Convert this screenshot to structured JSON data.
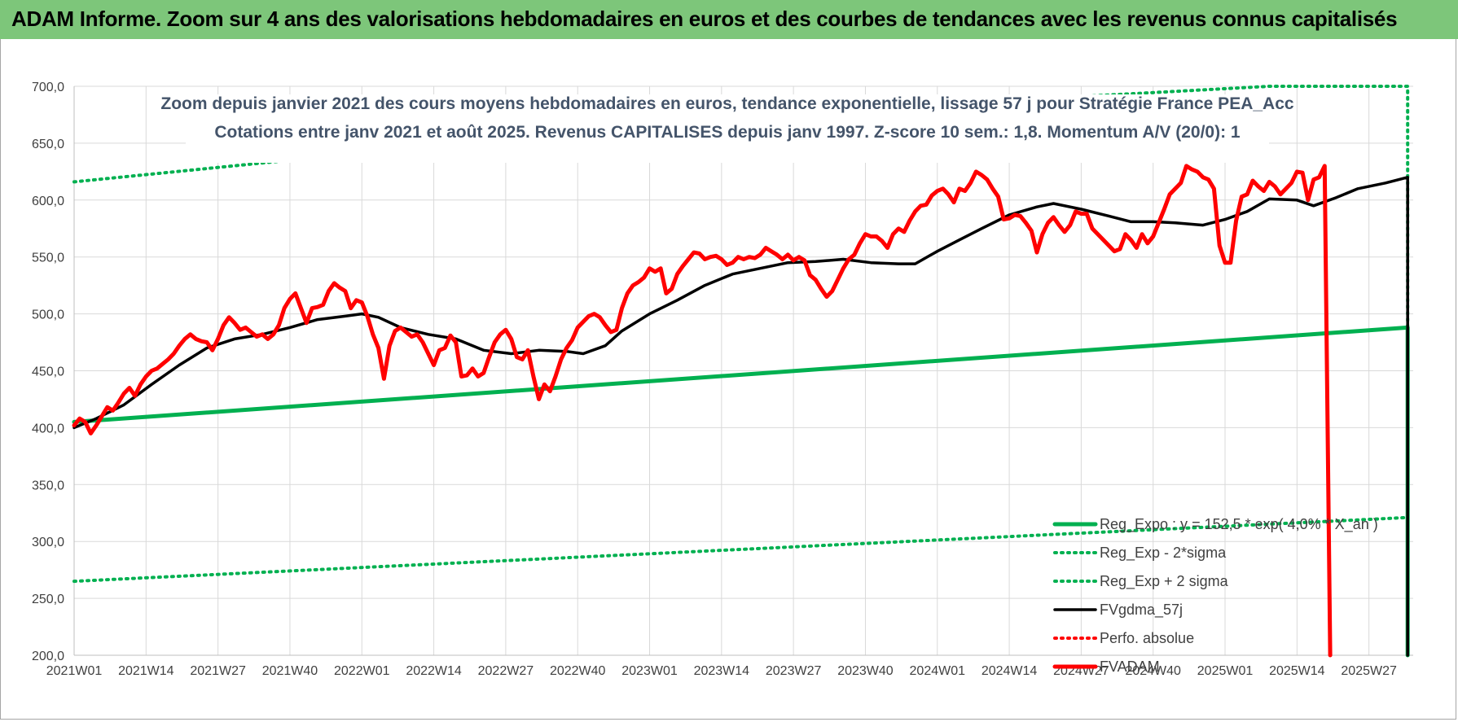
{
  "header": {
    "title": "ADAM Informe. Zoom sur 4 ans des valorisations hebdomadaires en euros et des courbes de tendances avec les revenus connus capitalisés"
  },
  "chart_data": {
    "type": "line",
    "title": "Zoom depuis janvier 2021 des cours moyens hebdomadaires en euros, tendance exponentielle, lissage 57 j pour Stratégie France PEA_Acc",
    "subtitle": "Cotations entre janv 2021 et août 2025. Revenus CAPITALISES depuis janv 1997. Z-score 10 sem.: 1,8. Momentum A/V (20/0): 1",
    "ylim": [
      200,
      700
    ],
    "yticks": [
      "700,0",
      "650,0",
      "600,0",
      "550,0",
      "500,0",
      "450,0",
      "400,0",
      "350,0",
      "300,0",
      "250,0",
      "200,0"
    ],
    "xlim": [
      1,
      243
    ],
    "xticks": [
      {
        "x": 1,
        "label": "2021W01"
      },
      {
        "x": 14,
        "label": "2021W14"
      },
      {
        "x": 27,
        "label": "2021W27"
      },
      {
        "x": 40,
        "label": "2021W40"
      },
      {
        "x": 53,
        "label": "2022W01"
      },
      {
        "x": 66,
        "label": "2022W14"
      },
      {
        "x": 79,
        "label": "2022W27"
      },
      {
        "x": 92,
        "label": "2022W40"
      },
      {
        "x": 105,
        "label": "2023W01"
      },
      {
        "x": 118,
        "label": "2023W14"
      },
      {
        "x": 131,
        "label": "2023W27"
      },
      {
        "x": 144,
        "label": "2023W40"
      },
      {
        "x": 157,
        "label": "2024W01"
      },
      {
        "x": 170,
        "label": "2024W14"
      },
      {
        "x": 183,
        "label": "2024W27"
      },
      {
        "x": 196,
        "label": "2024W40"
      },
      {
        "x": 209,
        "label": "2025W01"
      },
      {
        "x": 222,
        "label": "2025W14"
      },
      {
        "x": 235,
        "label": "2025W27"
      }
    ],
    "series": [
      {
        "name": "Reg_Expo : y = 152,5 * exp( 4,0% *  X_an )",
        "color": "#00b050",
        "style": "solid",
        "points": [
          [
            1,
            405
          ],
          [
            242,
            488
          ],
          [
            242,
            200
          ]
        ]
      },
      {
        "name": "Reg_Exp - 2*sigma",
        "color": "#00b050",
        "style": "dotted",
        "points": [
          [
            1,
            265
          ],
          [
            242,
            321
          ],
          [
            242,
            200
          ]
        ]
      },
      {
        "name": "Reg_Exp + 2 sigma",
        "color": "#00b050",
        "style": "dotted",
        "points": [
          [
            1,
            616
          ],
          [
            122,
            675
          ],
          [
            217,
            700
          ],
          [
            242,
            700
          ],
          [
            242,
            200
          ]
        ]
      },
      {
        "name": "FVgdma_57j",
        "color": "#000000",
        "style": "solid",
        "points": [
          [
            1,
            400
          ],
          [
            5,
            408
          ],
          [
            10,
            420
          ],
          [
            15,
            438
          ],
          [
            20,
            455
          ],
          [
            25,
            470
          ],
          [
            30,
            478
          ],
          [
            35,
            482
          ],
          [
            40,
            488
          ],
          [
            45,
            495
          ],
          [
            50,
            498
          ],
          [
            53,
            500
          ],
          [
            56,
            497
          ],
          [
            60,
            488
          ],
          [
            65,
            482
          ],
          [
            70,
            478
          ],
          [
            75,
            468
          ],
          [
            80,
            465
          ],
          [
            85,
            468
          ],
          [
            90,
            467
          ],
          [
            93,
            465
          ],
          [
            97,
            472
          ],
          [
            100,
            485
          ],
          [
            105,
            500
          ],
          [
            110,
            512
          ],
          [
            115,
            525
          ],
          [
            120,
            535
          ],
          [
            125,
            540
          ],
          [
            130,
            545
          ],
          [
            135,
            546
          ],
          [
            140,
            548
          ],
          [
            145,
            545
          ],
          [
            150,
            544
          ],
          [
            153,
            544
          ],
          [
            157,
            555
          ],
          [
            161,
            565
          ],
          [
            165,
            575
          ],
          [
            170,
            587
          ],
          [
            175,
            594
          ],
          [
            178,
            597
          ],
          [
            183,
            592
          ],
          [
            188,
            586
          ],
          [
            192,
            581
          ],
          [
            196,
            581
          ],
          [
            200,
            580
          ],
          [
            205,
            578
          ],
          [
            209,
            583
          ],
          [
            213,
            590
          ],
          [
            217,
            601
          ],
          [
            222,
            600
          ],
          [
            225,
            595
          ],
          [
            229,
            602
          ],
          [
            233,
            610
          ],
          [
            238,
            615
          ],
          [
            242,
            620
          ],
          [
            242,
            200
          ]
        ]
      },
      {
        "name": "Perfo. absolue",
        "color": "#ff0000",
        "style": "dotted",
        "points": []
      },
      {
        "name": "FVADAM",
        "color": "#ff0000",
        "style": "solid",
        "points": [
          [
            1,
            402
          ],
          [
            2,
            408
          ],
          [
            3,
            405
          ],
          [
            4,
            395
          ],
          [
            5,
            402
          ],
          [
            6,
            410
          ],
          [
            7,
            418
          ],
          [
            8,
            415
          ],
          [
            9,
            422
          ],
          [
            10,
            430
          ],
          [
            11,
            435
          ],
          [
            12,
            428
          ],
          [
            13,
            438
          ],
          [
            14,
            445
          ],
          [
            15,
            450
          ],
          [
            16,
            452
          ],
          [
            17,
            456
          ],
          [
            18,
            460
          ],
          [
            19,
            465
          ],
          [
            20,
            472
          ],
          [
            21,
            478
          ],
          [
            22,
            482
          ],
          [
            23,
            478
          ],
          [
            24,
            476
          ],
          [
            25,
            475
          ],
          [
            26,
            468
          ],
          [
            27,
            478
          ],
          [
            28,
            490
          ],
          [
            29,
            497
          ],
          [
            30,
            492
          ],
          [
            31,
            486
          ],
          [
            32,
            488
          ],
          [
            33,
            484
          ],
          [
            34,
            480
          ],
          [
            35,
            482
          ],
          [
            36,
            478
          ],
          [
            37,
            482
          ],
          [
            38,
            490
          ],
          [
            39,
            505
          ],
          [
            40,
            513
          ],
          [
            41,
            518
          ],
          [
            42,
            505
          ],
          [
            43,
            492
          ],
          [
            44,
            505
          ],
          [
            45,
            506
          ],
          [
            46,
            508
          ],
          [
            47,
            520
          ],
          [
            48,
            527
          ],
          [
            49,
            523
          ],
          [
            50,
            520
          ],
          [
            51,
            505
          ],
          [
            52,
            512
          ],
          [
            53,
            510
          ],
          [
            54,
            498
          ],
          [
            55,
            482
          ],
          [
            56,
            470
          ],
          [
            57,
            443
          ],
          [
            58,
            472
          ],
          [
            59,
            485
          ],
          [
            60,
            488
          ],
          [
            61,
            484
          ],
          [
            62,
            480
          ],
          [
            63,
            482
          ],
          [
            64,
            475
          ],
          [
            65,
            465
          ],
          [
            66,
            455
          ],
          [
            67,
            468
          ],
          [
            68,
            470
          ],
          [
            69,
            481
          ],
          [
            70,
            475
          ],
          [
            71,
            445
          ],
          [
            72,
            446
          ],
          [
            73,
            452
          ],
          [
            74,
            445
          ],
          [
            75,
            448
          ],
          [
            76,
            462
          ],
          [
            77,
            475
          ],
          [
            78,
            482
          ],
          [
            79,
            486
          ],
          [
            80,
            478
          ],
          [
            81,
            462
          ],
          [
            82,
            460
          ],
          [
            83,
            468
          ],
          [
            84,
            445
          ],
          [
            85,
            425
          ],
          [
            86,
            438
          ],
          [
            87,
            432
          ],
          [
            88,
            445
          ],
          [
            89,
            460
          ],
          [
            90,
            470
          ],
          [
            91,
            477
          ],
          [
            92,
            488
          ],
          [
            93,
            493
          ],
          [
            94,
            498
          ],
          [
            95,
            500
          ],
          [
            96,
            497
          ],
          [
            97,
            490
          ],
          [
            98,
            484
          ],
          [
            99,
            486
          ],
          [
            100,
            505
          ],
          [
            101,
            518
          ],
          [
            102,
            525
          ],
          [
            103,
            528
          ],
          [
            104,
            532
          ],
          [
            105,
            540
          ],
          [
            106,
            537
          ],
          [
            107,
            540
          ],
          [
            108,
            518
          ],
          [
            109,
            522
          ],
          [
            110,
            535
          ],
          [
            111,
            542
          ],
          [
            112,
            548
          ],
          [
            113,
            554
          ],
          [
            114,
            553
          ],
          [
            115,
            548
          ],
          [
            116,
            550
          ],
          [
            117,
            551
          ],
          [
            118,
            548
          ],
          [
            119,
            543
          ],
          [
            120,
            545
          ],
          [
            121,
            550
          ],
          [
            122,
            548
          ],
          [
            123,
            550
          ],
          [
            124,
            549
          ],
          [
            125,
            552
          ],
          [
            126,
            558
          ],
          [
            127,
            555
          ],
          [
            128,
            552
          ],
          [
            129,
            548
          ],
          [
            130,
            552
          ],
          [
            131,
            547
          ],
          [
            132,
            550
          ],
          [
            133,
            547
          ],
          [
            134,
            534
          ],
          [
            135,
            530
          ],
          [
            136,
            522
          ],
          [
            137,
            515
          ],
          [
            138,
            520
          ],
          [
            139,
            530
          ],
          [
            140,
            540
          ],
          [
            141,
            548
          ],
          [
            142,
            552
          ],
          [
            143,
            562
          ],
          [
            144,
            570
          ],
          [
            145,
            568
          ],
          [
            146,
            568
          ],
          [
            147,
            564
          ],
          [
            148,
            558
          ],
          [
            149,
            570
          ],
          [
            150,
            575
          ],
          [
            151,
            572
          ],
          [
            152,
            582
          ],
          [
            153,
            590
          ],
          [
            154,
            595
          ],
          [
            155,
            596
          ],
          [
            156,
            604
          ],
          [
            157,
            608
          ],
          [
            158,
            610
          ],
          [
            159,
            605
          ],
          [
            160,
            598
          ],
          [
            161,
            610
          ],
          [
            162,
            608
          ],
          [
            163,
            615
          ],
          [
            164,
            625
          ],
          [
            165,
            622
          ],
          [
            166,
            618
          ],
          [
            167,
            610
          ],
          [
            168,
            603
          ],
          [
            169,
            583
          ],
          [
            170,
            584
          ],
          [
            171,
            587
          ],
          [
            172,
            586
          ],
          [
            173,
            580
          ],
          [
            174,
            573
          ],
          [
            175,
            554
          ],
          [
            176,
            570
          ],
          [
            177,
            580
          ],
          [
            178,
            585
          ],
          [
            179,
            578
          ],
          [
            180,
            572
          ],
          [
            181,
            578
          ],
          [
            182,
            590
          ],
          [
            183,
            588
          ],
          [
            184,
            588
          ],
          [
            185,
            575
          ],
          [
            186,
            570
          ],
          [
            187,
            565
          ],
          [
            188,
            560
          ],
          [
            189,
            555
          ],
          [
            190,
            557
          ],
          [
            191,
            570
          ],
          [
            192,
            565
          ],
          [
            193,
            558
          ],
          [
            194,
            570
          ],
          [
            195,
            562
          ],
          [
            196,
            568
          ],
          [
            197,
            580
          ],
          [
            198,
            592
          ],
          [
            199,
            605
          ],
          [
            200,
            610
          ],
          [
            201,
            615
          ],
          [
            202,
            630
          ],
          [
            203,
            627
          ],
          [
            204,
            625
          ],
          [
            205,
            620
          ],
          [
            206,
            618
          ],
          [
            207,
            610
          ],
          [
            208,
            560
          ],
          [
            209,
            545
          ],
          [
            210,
            545
          ],
          [
            211,
            582
          ],
          [
            212,
            603
          ],
          [
            213,
            605
          ],
          [
            214,
            617
          ],
          [
            215,
            612
          ],
          [
            216,
            608
          ],
          [
            217,
            616
          ],
          [
            218,
            612
          ],
          [
            219,
            605
          ],
          [
            220,
            610
          ],
          [
            221,
            615
          ],
          [
            222,
            625
          ],
          [
            223,
            624
          ],
          [
            224,
            600
          ],
          [
            225,
            618
          ],
          [
            226,
            620
          ],
          [
            227,
            630
          ],
          [
            228,
            200
          ]
        ]
      }
    ],
    "legend_position": "bottom-right",
    "grid": true
  }
}
